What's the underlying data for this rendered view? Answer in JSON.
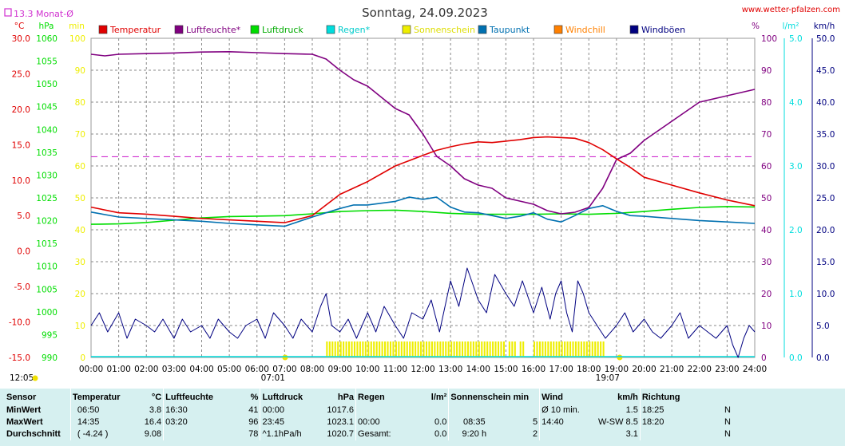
{
  "header": {
    "title": "Sonntag, 24.09.2023",
    "site": "www.wetter-pfalzen.com",
    "monthly_avg_label": "13.3 Monat-Ø"
  },
  "colors": {
    "temperatur": "#e00000",
    "luftfeuchte": "#800080",
    "luftdruck": "#00dd00",
    "regen": "#00dddd",
    "sonnenschein": "#eeee00",
    "taupunkt": "#0070b0",
    "windchill": "#ff8000",
    "windboeen": "#000080",
    "grid": "#888888",
    "monthly_avg": "#d030d0"
  },
  "chart_data": {
    "type": "line",
    "title": "Sonntag, 24.09.2023",
    "legend": [
      "Temperatur",
      "Luftfeuchte*",
      "Luftdruck",
      "Regen*",
      "Sonnenschein",
      "Taupunkt",
      "Windchill",
      "Windböen"
    ],
    "x_ticks": [
      "00:00",
      "01:00",
      "02:00",
      "03:00",
      "04:00",
      "05:00",
      "06:00",
      "07:00",
      "08:00",
      "09:00",
      "10:00",
      "11:00",
      "12:00",
      "13:00",
      "14:00",
      "15:00",
      "16:00",
      "17:00",
      "18:00",
      "19:00",
      "20:00",
      "21:00",
      "22:00",
      "23:00",
      "24:00"
    ],
    "axes": {
      "temp": {
        "unit": "°C",
        "ticks": [
          "30.0",
          "25.0",
          "20.0",
          "15.0",
          "10.0",
          "5.0",
          "0.0",
          "-5.0",
          "-10.0",
          "-15.0"
        ],
        "range": [
          -15,
          30
        ]
      },
      "pressure": {
        "unit": "hPa",
        "ticks": [
          "1060",
          "1055",
          "1050",
          "1045",
          "1040",
          "1035",
          "1030",
          "1025",
          "1020",
          "1015",
          "1010",
          "1005",
          "1000",
          "995",
          "990"
        ],
        "range": [
          990,
          1060
        ]
      },
      "sun_min": {
        "unit": "min",
        "ticks": [
          "100",
          "90",
          "80",
          "70",
          "60",
          "50",
          "40",
          "30",
          "20",
          "10",
          "0"
        ],
        "range": [
          0,
          100
        ]
      },
      "humidity": {
        "unit": "%",
        "ticks": [
          "100",
          "90",
          "80",
          "70",
          "60",
          "50",
          "40",
          "30",
          "20",
          "10",
          "0"
        ],
        "range": [
          0,
          100
        ]
      },
      "rain": {
        "unit": "l/m²",
        "ticks": [
          "5.0",
          "4.0",
          "3.0",
          "2.0",
          "1.0",
          "0.0"
        ],
        "range": [
          0,
          5
        ]
      },
      "wind": {
        "unit": "km/h",
        "ticks": [
          "50.0",
          "45.0",
          "40.0",
          "35.0",
          "30.0",
          "25.0",
          "20.0",
          "15.0",
          "10.0",
          "5.0",
          "0.0"
        ],
        "range": [
          0,
          50
        ]
      }
    },
    "sunrise": "07:01",
    "sunset": "19:07",
    "moonrise": "12:05",
    "monthly_avg_temp": 13.3,
    "series": [
      {
        "name": "Temperatur",
        "axis": "temp",
        "x": [
          0,
          1,
          2,
          3,
          4,
          5,
          6,
          7,
          8,
          8.5,
          9,
          10,
          11,
          12,
          12.5,
          13,
          13.5,
          14,
          14.5,
          15,
          15.5,
          16,
          16.5,
          17,
          17.5,
          18,
          18.5,
          19,
          19.5,
          20,
          21,
          22,
          23,
          24
        ],
        "y": [
          6.2,
          5.4,
          5.2,
          4.9,
          4.6,
          4.4,
          4.2,
          4.0,
          5.0,
          6.5,
          8.0,
          9.8,
          12.0,
          13.5,
          14.2,
          14.7,
          15.1,
          15.4,
          15.3,
          15.5,
          15.7,
          16.0,
          16.1,
          16.0,
          15.9,
          15.3,
          14.3,
          13.0,
          11.8,
          10.4,
          9.3,
          8.2,
          7.2,
          6.4
        ]
      },
      {
        "name": "Luftfeuchte*",
        "axis": "humidity",
        "x": [
          0,
          0.5,
          1,
          2,
          3,
          4,
          5,
          6,
          7,
          8,
          8.5,
          9,
          9.5,
          10,
          11,
          11.5,
          12,
          12.5,
          13,
          13.5,
          14,
          14.5,
          15,
          15.5,
          16,
          16.5,
          17,
          17.5,
          18,
          18.5,
          19,
          19.5,
          20,
          21,
          22,
          23,
          24
        ],
        "y": [
          95.0,
          94.5,
          95.0,
          95.2,
          95.4,
          95.7,
          95.8,
          95.5,
          95.2,
          95.0,
          93.5,
          90.0,
          87.0,
          85.0,
          78.0,
          76.0,
          70.0,
          63.0,
          60.0,
          56.0,
          54.0,
          53.0,
          50.0,
          49.0,
          48.0,
          46.0,
          45.0,
          45.5,
          47.0,
          53.0,
          62.0,
          64.0,
          68.0,
          74.0,
          80.0,
          82.0,
          84.0
        ]
      },
      {
        "name": "Luftdruck",
        "axis": "pressure",
        "x": [
          0,
          1,
          2,
          3,
          4,
          5,
          6,
          7,
          8,
          9,
          10,
          11,
          12,
          13,
          14,
          15,
          16,
          17,
          18,
          19,
          20,
          21,
          22,
          23,
          24
        ],
        "y": [
          1019.2,
          1019.3,
          1019.6,
          1020.1,
          1020.6,
          1020.9,
          1021.0,
          1021.1,
          1021.5,
          1022.0,
          1022.2,
          1022.3,
          1022.0,
          1021.6,
          1021.4,
          1021.4,
          1021.4,
          1021.5,
          1021.4,
          1021.6,
          1022.0,
          1022.5,
          1022.9,
          1023.1,
          1023.0
        ]
      },
      {
        "name": "Taupunkt",
        "axis": "temp",
        "x": [
          0,
          1,
          2,
          3,
          4,
          5,
          6,
          7,
          8,
          9,
          9.5,
          10,
          11,
          11.5,
          12,
          12.5,
          13,
          13.5,
          14,
          14.5,
          15,
          15.5,
          16,
          16.5,
          17,
          17.5,
          18,
          18.5,
          19,
          19.5,
          20,
          21,
          22,
          23,
          24
        ],
        "y": [
          5.5,
          4.8,
          4.6,
          4.4,
          4.2,
          3.9,
          3.7,
          3.5,
          4.8,
          6.0,
          6.5,
          6.5,
          7.0,
          7.6,
          7.3,
          7.6,
          6.2,
          5.5,
          5.4,
          5.0,
          4.6,
          4.9,
          5.4,
          4.5,
          4.1,
          5.0,
          6.0,
          6.4,
          5.6,
          5.0,
          4.9,
          4.6,
          4.3,
          4.1,
          3.9
        ]
      },
      {
        "name": "Sonnenschein",
        "axis": "sun_min",
        "blocks": [
          [
            8.5,
            14.9
          ],
          [
            15.1,
            15.3
          ],
          [
            15.5,
            15.7
          ],
          [
            16,
            18.6
          ]
        ],
        "level": 5
      },
      {
        "name": "Regen*",
        "axis": "rain",
        "y": [
          0.0
        ]
      },
      {
        "name": "Windböen",
        "axis": "wind",
        "x": [
          0,
          0.3,
          0.6,
          1,
          1.3,
          1.6,
          2,
          2.3,
          2.6,
          3,
          3.3,
          3.6,
          4,
          4.3,
          4.6,
          5,
          5.3,
          5.6,
          6,
          6.3,
          6.6,
          7,
          7.3,
          7.6,
          8,
          8.3,
          8.5,
          8.7,
          9,
          9.3,
          9.6,
          10,
          10.3,
          10.6,
          11,
          11.3,
          11.6,
          12,
          12.3,
          12.6,
          13,
          13.3,
          13.6,
          14,
          14.3,
          14.6,
          15,
          15.3,
          15.6,
          16,
          16.3,
          16.6,
          16.8,
          17,
          17.2,
          17.4,
          17.6,
          17.8,
          18,
          18.3,
          18.6,
          19,
          19.3,
          19.6,
          20,
          20.3,
          20.6,
          21,
          21.3,
          21.6,
          22,
          22.3,
          22.6,
          23,
          23.2,
          23.4,
          23.6,
          23.8,
          24
        ],
        "y": [
          5,
          7,
          4,
          7,
          3,
          6,
          5,
          4,
          6,
          3,
          6,
          4,
          5,
          3,
          6,
          4,
          3,
          5,
          6,
          3,
          7,
          5,
          3,
          6,
          4,
          8,
          10,
          5,
          4,
          6,
          3,
          7,
          4,
          8,
          5,
          3,
          7,
          6,
          9,
          4,
          12,
          8,
          14,
          9,
          7,
          13,
          10,
          8,
          12,
          7,
          11,
          6,
          10,
          12,
          7,
          4,
          12,
          10,
          7,
          5,
          3,
          5,
          7,
          4,
          6,
          4,
          3,
          5,
          7,
          3,
          5,
          4,
          3,
          5,
          2,
          0,
          3,
          5,
          4
        ]
      }
    ]
  },
  "stats": {
    "headers": {
      "sensor": "Sensor",
      "temperatur": "Temperatur",
      "temp_unit": "°C",
      "luftfeuchte": "Luftfeuchte",
      "hum_unit": "%",
      "luftdruck": "Luftdruck",
      "press_unit": "hPa",
      "regen": "Regen",
      "rain_unit": "l/m²",
      "sonne": "Sonnenschein min",
      "wind": "Wind",
      "wind_unit": "km/h",
      "richtung": "Richtung"
    },
    "rows": [
      {
        "label": "MinWert",
        "temp_time": "06:50",
        "temp_val": "3.8",
        "hum_time": "16:30",
        "hum_val": "41",
        "press_time": "00:00",
        "press_val": "1017.6",
        "rain_time": "",
        "rain_val": "",
        "sun_time": "",
        "sun_val": "",
        "wind_time": "Ø 10 min.",
        "wind_val": "1.5",
        "dir_time": "18:25",
        "dir_val": "N"
      },
      {
        "label": "MaxWert",
        "temp_time": "14:35",
        "temp_val": "16.4",
        "hum_time": "03:20",
        "hum_val": "96",
        "press_time": "23:45",
        "press_val": "1023.1",
        "rain_time": "00:00",
        "rain_val": "0.0",
        "sun_time": "08:35",
        "sun_val": "5",
        "wind_time": "14:40",
        "wind_val": "W-SW 8.5",
        "dir_time": "18:20",
        "dir_val": "N"
      },
      {
        "label": "Durchschnitt",
        "temp_time": "( -4.24 )",
        "temp_val": "9.08",
        "hum_time": "",
        "hum_val": "78",
        "press_time": "^1.1hPa/h",
        "press_val": "1020.7",
        "rain_time": "Gesamt:",
        "rain_val": "0.0",
        "sun_time": "9:20 h",
        "sun_val": "2",
        "wind_time": "",
        "wind_val": "3.1",
        "dir_time": "",
        "dir_val": "N"
      }
    ]
  }
}
